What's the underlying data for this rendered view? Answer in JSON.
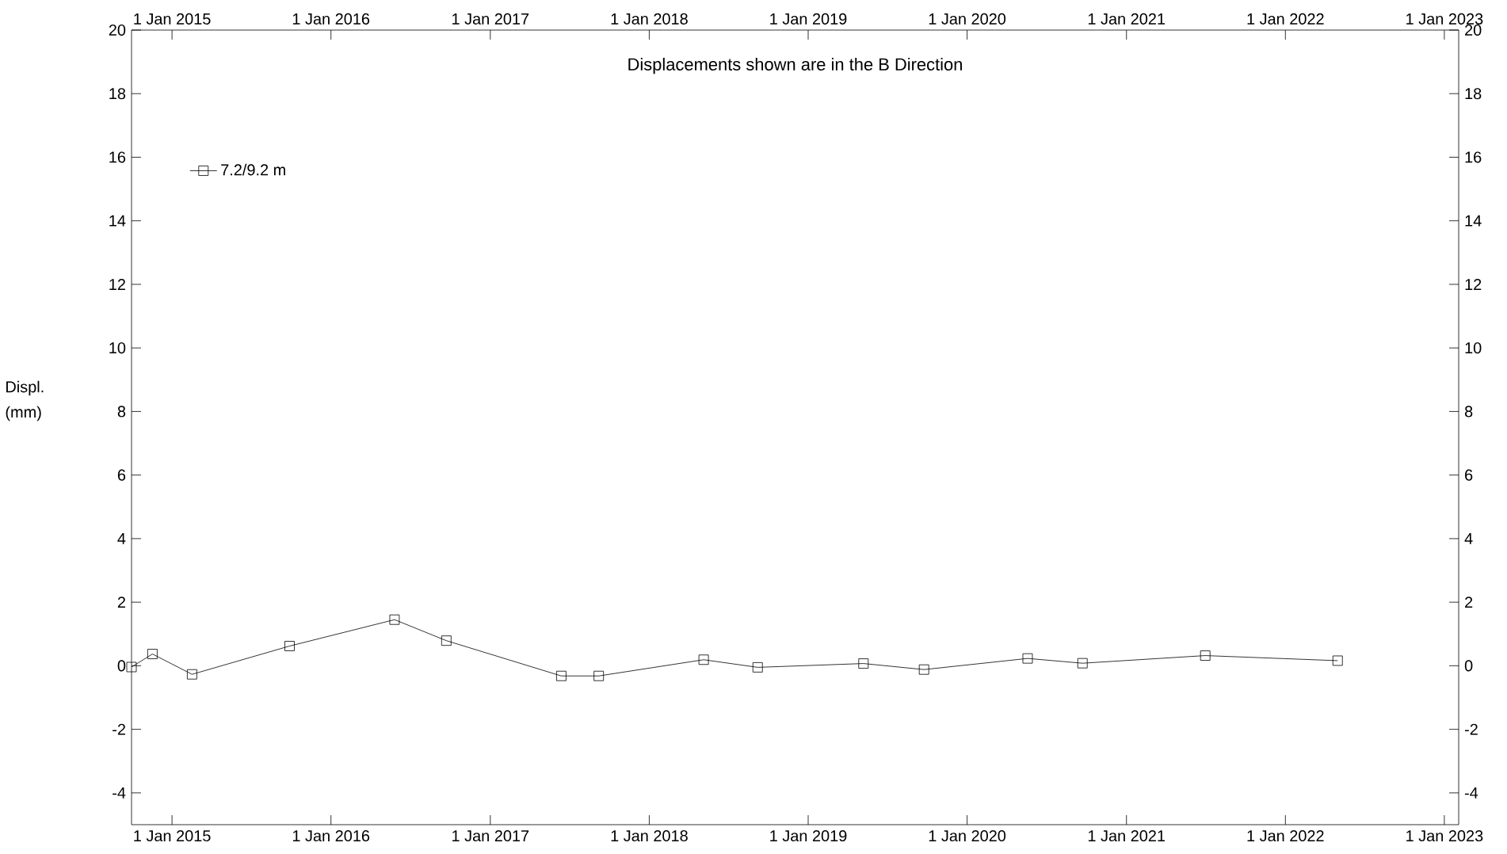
{
  "chart_data": {
    "type": "line",
    "title": "Displacements shown are in the  B Direction",
    "ylabel": "Displ. (mm)",
    "x": [
      "2014-09-30",
      "2014-11-17",
      "2015-02-16",
      "2015-09-28",
      "2016-05-26",
      "2016-09-22",
      "2017-06-13",
      "2017-09-07",
      "2018-05-06",
      "2018-09-07",
      "2019-05-08",
      "2019-09-24",
      "2020-05-19",
      "2020-09-22",
      "2021-07-01",
      "2022-05-01"
    ],
    "series": [
      {
        "name": "7.2/9.2 m",
        "color": "#000000",
        "values": [
          -0.04,
          0.37,
          -0.27,
          0.62,
          1.45,
          0.79,
          -0.32,
          -0.32,
          0.19,
          -0.05,
          0.07,
          -0.12,
          0.23,
          0.08,
          0.32,
          0.16
        ]
      }
    ],
    "xlim": [
      "2014-09-30",
      "2023-02-03"
    ],
    "xticks": [
      {
        "value": "2015-01-01",
        "label": "1 Jan 2015"
      },
      {
        "value": "2016-01-01",
        "label": "1 Jan 2016"
      },
      {
        "value": "2017-01-01",
        "label": "1 Jan 2017"
      },
      {
        "value": "2018-01-01",
        "label": "1 Jan 2018"
      },
      {
        "value": "2019-01-01",
        "label": "1 Jan 2019"
      },
      {
        "value": "2020-01-01",
        "label": "1 Jan 2020"
      },
      {
        "value": "2021-01-01",
        "label": "1 Jan 2021"
      },
      {
        "value": "2022-01-01",
        "label": "1 Jan 2022"
      },
      {
        "value": "2023-01-01",
        "label": "1 Jan 2023"
      }
    ],
    "x2lim": [
      "2014-09-30",
      "2023-02-03"
    ],
    "x2ticks": [
      {
        "value": "2015-01-01",
        "label": "1 Jan 2015"
      },
      {
        "value": "2016-01-01",
        "label": "1 Jan 2016"
      },
      {
        "value": "2017-01-01",
        "label": "1 Jan 2017"
      },
      {
        "value": "2018-01-01",
        "label": "1 Jan 2018"
      },
      {
        "value": "2019-01-01",
        "label": "1 Jan 2019"
      },
      {
        "value": "2020-01-01",
        "label": "1 Jan 2020"
      },
      {
        "value": "2021-01-01",
        "label": "1 Jan 2021"
      },
      {
        "value": "2022-01-01",
        "label": "1 Jan 2022"
      },
      {
        "value": "2023-01-01",
        "label": "1 Jan 2023"
      }
    ],
    "ylim": [
      -5,
      20
    ],
    "yticks": [
      -4,
      -2,
      0,
      2,
      4,
      6,
      8,
      10,
      12,
      14,
      16,
      18,
      20
    ],
    "y2lim": [
      -5,
      20
    ],
    "y2ticks": [
      -4,
      -2,
      0,
      2,
      4,
      6,
      8,
      10,
      12,
      14,
      16,
      18,
      20
    ],
    "grid": false,
    "legend": "top left",
    "marker": "square",
    "line_style": "solid"
  }
}
